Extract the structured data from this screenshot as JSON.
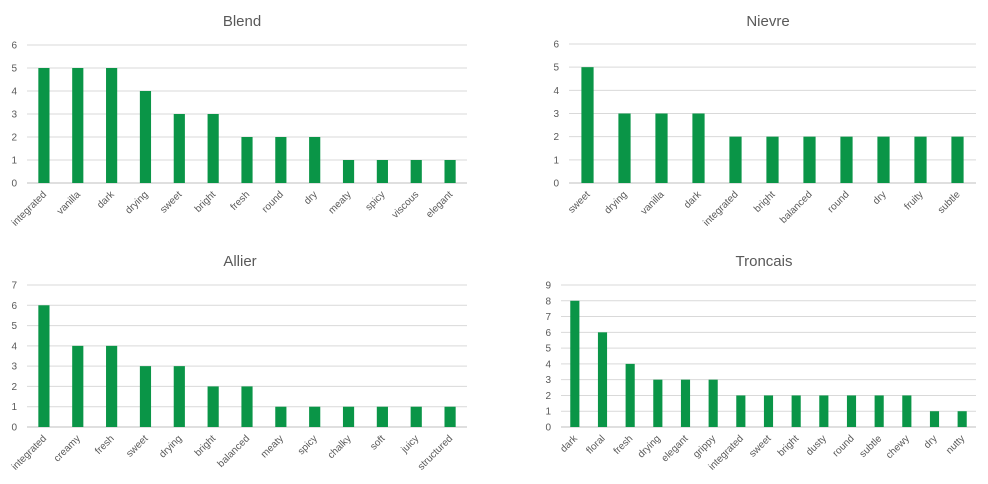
{
  "colors": {
    "bar": "#0a9547",
    "grid": "#d9d9d9",
    "text": "#595959"
  },
  "chart_data": [
    {
      "type": "bar",
      "title": "Blend",
      "ylim": [
        0,
        6
      ],
      "categories": [
        "integrated",
        "vanilla",
        "dark",
        "drying",
        "sweet",
        "bright",
        "fresh",
        "round",
        "dry",
        "meaty",
        "spicy",
        "viscous",
        "elegant"
      ],
      "values": [
        5,
        5,
        5,
        4,
        3,
        3,
        2,
        2,
        2,
        1,
        1,
        1,
        1
      ]
    },
    {
      "type": "bar",
      "title": "Nievre",
      "ylim": [
        0,
        6
      ],
      "categories": [
        "sweet",
        "drying",
        "vanilla",
        "dark",
        "integrated",
        "bright",
        "balanced",
        "round",
        "dry",
        "fruity",
        "subtle"
      ],
      "values": [
        5,
        3,
        3,
        3,
        2,
        2,
        2,
        2,
        2,
        2,
        2
      ]
    },
    {
      "type": "bar",
      "title": "Allier",
      "ylim": [
        0,
        7
      ],
      "categories": [
        "integrated",
        "creamy",
        "fresh",
        "sweet",
        "drying",
        "bright",
        "balanced",
        "meaty",
        "spicy",
        "chalky",
        "soft",
        "juicy",
        "structured"
      ],
      "values": [
        6,
        4,
        4,
        3,
        3,
        2,
        2,
        1,
        1,
        1,
        1,
        1,
        1
      ]
    },
    {
      "type": "bar",
      "title": "Troncais",
      "ylim": [
        0,
        9
      ],
      "categories": [
        "dark",
        "floral",
        "fresh",
        "drying",
        "elegant",
        "grippy",
        "integrated",
        "sweet",
        "bright",
        "dusty",
        "round",
        "subtle",
        "chewy",
        "dry",
        "nutty"
      ],
      "values": [
        8,
        6,
        4,
        3,
        3,
        3,
        2,
        2,
        2,
        2,
        2,
        2,
        2,
        1,
        1
      ]
    }
  ]
}
